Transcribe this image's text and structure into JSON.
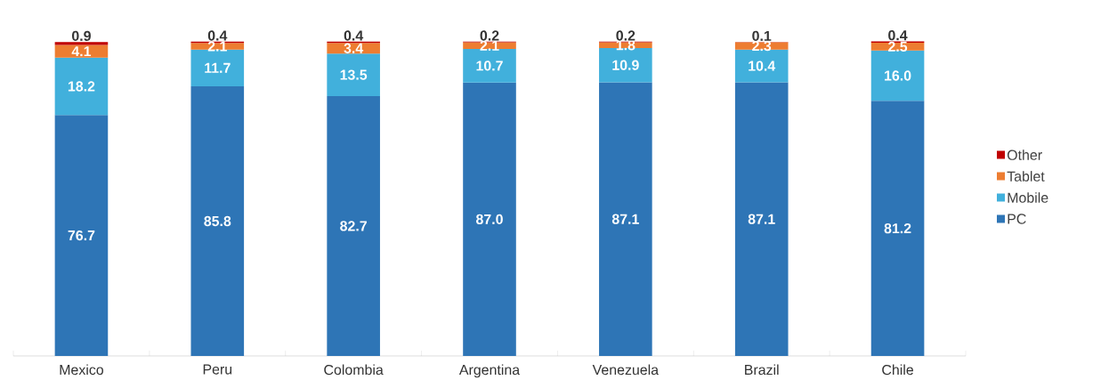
{
  "chart_data": {
    "type": "bar",
    "stacked": true,
    "legend": "right",
    "categories": [
      "Mexico",
      "Peru",
      "Colombia",
      "Argentina",
      "Venezuela",
      "Brazil",
      "Chile"
    ],
    "series": [
      {
        "name": "PC",
        "color": "#2e75b6",
        "values": [
          76.7,
          85.8,
          82.7,
          87.0,
          87.1,
          87.1,
          81.2
        ],
        "value_labels": [
          "76.7",
          "85.8",
          "82.7",
          "87.0",
          "87.1",
          "87.1",
          "81.2"
        ]
      },
      {
        "name": "Mobile",
        "color": "#41b0dc",
        "values": [
          18.2,
          11.7,
          13.5,
          10.7,
          10.9,
          10.4,
          16.0
        ],
        "value_labels": [
          "18.2",
          "11.7",
          "13.5",
          "10.7",
          "10.9",
          "10.4",
          "16.0"
        ]
      },
      {
        "name": "Tablet",
        "color": "#ed7d31",
        "values": [
          4.1,
          2.1,
          3.4,
          2.1,
          1.8,
          2.3,
          2.5
        ],
        "value_labels": [
          "4.1",
          "2.1",
          "3.4",
          "2.1",
          "1.8",
          "2.3",
          "2.5"
        ]
      },
      {
        "name": "Other",
        "color": "#c00000",
        "values": [
          0.9,
          0.4,
          0.4,
          0.2,
          0.2,
          0.1,
          0.4
        ],
        "value_labels": [
          "0.9",
          "0.4",
          "0.4",
          "0.2",
          "0.2",
          "0.1",
          "0.4"
        ]
      }
    ]
  }
}
